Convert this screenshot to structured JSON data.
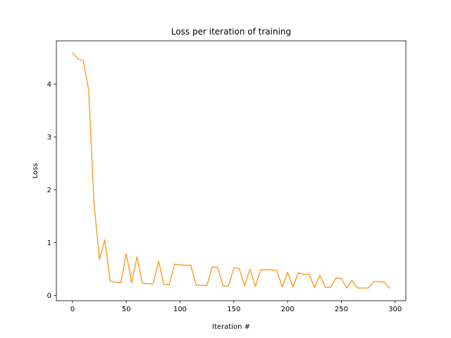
{
  "chart_data": {
    "type": "line",
    "title": "Loss per iteration of training",
    "xlabel": "Iteration #",
    "ylabel": "Loss",
    "xlim": [
      -15,
      310
    ],
    "ylim": [
      -0.1,
      4.82
    ],
    "xticks": [
      0,
      50,
      100,
      150,
      200,
      250,
      300
    ],
    "yticks": [
      0,
      1,
      2,
      3,
      4
    ],
    "grid": false,
    "legend": "none",
    "series": [
      {
        "color": "#ff8c00",
        "x": [
          0,
          5,
          10,
          15,
          20,
          25,
          30,
          35,
          40,
          45,
          50,
          55,
          60,
          65,
          70,
          75,
          80,
          85,
          90,
          95,
          100,
          105,
          110,
          115,
          120,
          125,
          130,
          135,
          140,
          145,
          150,
          155,
          160,
          165,
          170,
          175,
          180,
          185,
          190,
          195,
          200,
          205,
          210,
          215,
          220,
          225,
          230,
          235,
          240,
          245,
          250,
          255,
          260,
          265,
          270,
          275,
          280,
          285,
          290,
          295
        ],
        "y": [
          4.6,
          4.48,
          4.44,
          3.9,
          1.75,
          0.68,
          1.05,
          0.27,
          0.25,
          0.24,
          0.79,
          0.24,
          0.73,
          0.23,
          0.22,
          0.22,
          0.65,
          0.21,
          0.2,
          0.59,
          0.58,
          0.57,
          0.57,
          0.19,
          0.19,
          0.19,
          0.54,
          0.53,
          0.18,
          0.18,
          0.52,
          0.51,
          0.18,
          0.5,
          0.17,
          0.48,
          0.49,
          0.48,
          0.47,
          0.16,
          0.44,
          0.16,
          0.43,
          0.4,
          0.4,
          0.15,
          0.38,
          0.15,
          0.15,
          0.33,
          0.32,
          0.14,
          0.28,
          0.14,
          0.14,
          0.14,
          0.26,
          0.26,
          0.25,
          0.13
        ]
      }
    ]
  }
}
